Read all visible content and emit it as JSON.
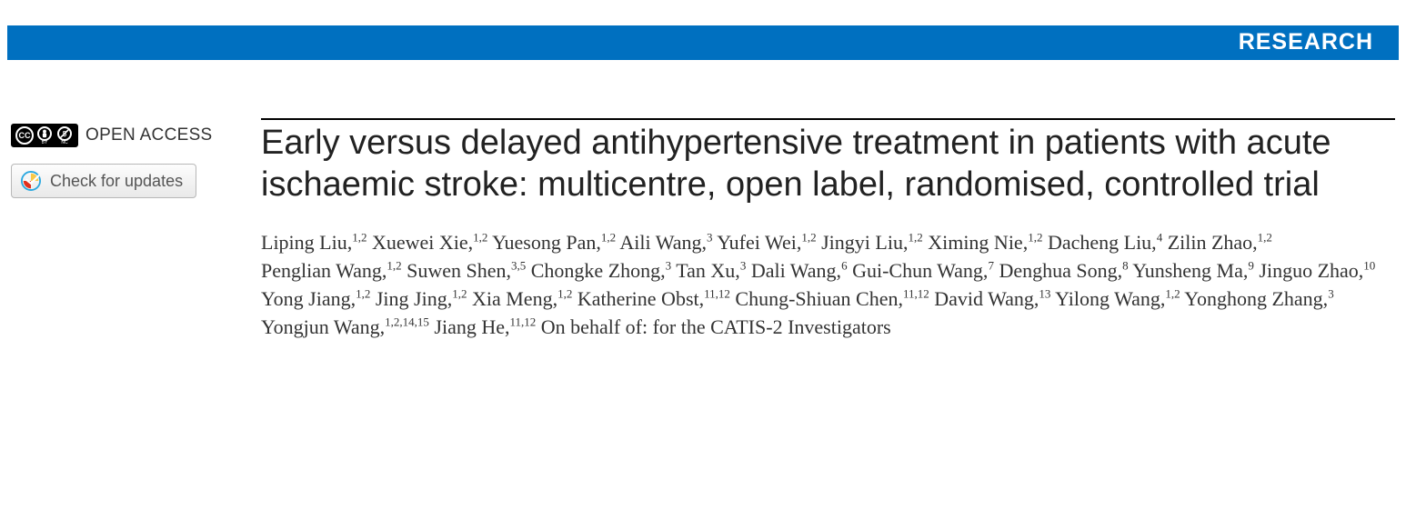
{
  "banner": {
    "label": "RESEARCH",
    "bg_color": "#0070c0",
    "text_color": "#ffffff"
  },
  "left": {
    "open_access_label": "OPEN ACCESS",
    "cc_labels": {
      "cc": "CC",
      "by": "BY",
      "nc": "NC"
    },
    "check_updates_label": "Check for updates"
  },
  "article": {
    "title": "Early versus delayed antihypertensive treatment in patients with acute ischaemic stroke: multicentre, open label, randomised, controlled trial",
    "authors": [
      {
        "name": "Liping Liu",
        "affil": "1,2"
      },
      {
        "name": "Xuewei Xie",
        "affil": "1,2"
      },
      {
        "name": "Yuesong Pan",
        "affil": "1,2"
      },
      {
        "name": "Aili Wang",
        "affil": "3"
      },
      {
        "name": "Yufei Wei",
        "affil": "1,2"
      },
      {
        "name": "Jingyi Liu",
        "affil": "1,2"
      },
      {
        "name": "Ximing Nie",
        "affil": "1,2"
      },
      {
        "name": "Dacheng Liu",
        "affil": "4"
      },
      {
        "name": "Zilin Zhao",
        "affil": "1,2"
      },
      {
        "name": "Penglian Wang",
        "affil": "1,2"
      },
      {
        "name": "Suwen Shen",
        "affil": "3,5"
      },
      {
        "name": "Chongke Zhong",
        "affil": "3"
      },
      {
        "name": "Tan Xu",
        "affil": "3"
      },
      {
        "name": "Dali Wang",
        "affil": "6"
      },
      {
        "name": "Gui-Chun Wang",
        "affil": "7"
      },
      {
        "name": "Denghua Song",
        "affil": "8"
      },
      {
        "name": "Yunsheng Ma",
        "affil": "9"
      },
      {
        "name": "Jinguo Zhao",
        "affil": "10"
      },
      {
        "name": "Yong Jiang",
        "affil": "1,2"
      },
      {
        "name": "Jing Jing",
        "affil": "1,2"
      },
      {
        "name": "Xia Meng",
        "affil": "1,2"
      },
      {
        "name": "Katherine Obst",
        "affil": "11,12"
      },
      {
        "name": "Chung-Shiuan Chen",
        "affil": "11,12"
      },
      {
        "name": "David Wang",
        "affil": "13"
      },
      {
        "name": "Yilong Wang",
        "affil": "1,2"
      },
      {
        "name": "Yonghong Zhang",
        "affil": "3"
      },
      {
        "name": "Yongjun Wang",
        "affil": "1,2,14,15"
      },
      {
        "name": "Jiang He",
        "affil": "11,12"
      }
    ],
    "on_behalf": "On behalf of: for the CATIS-2 Investigators"
  }
}
